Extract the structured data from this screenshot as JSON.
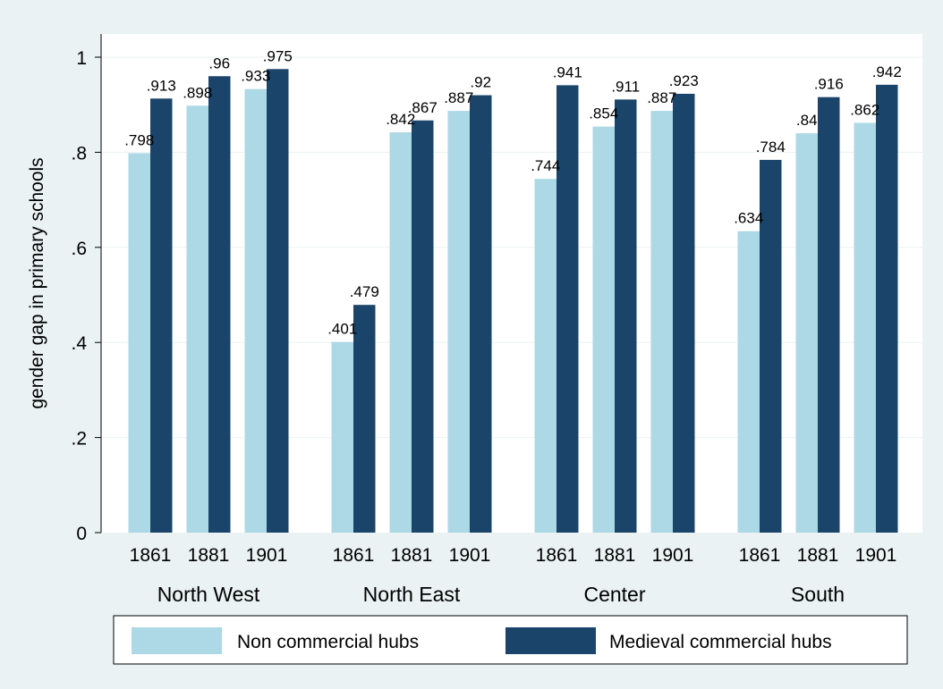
{
  "chart_data": {
    "type": "bar",
    "title": "",
    "xlabel": "",
    "ylabel": "gender gap in primary schools",
    "ylim": [
      0,
      1
    ],
    "yticks": [
      0,
      0.2,
      0.4,
      0.6,
      0.8,
      1
    ],
    "ytick_labels": [
      "0",
      ".2",
      ".4",
      ".6",
      ".8",
      "1"
    ],
    "grid": true,
    "legend_position": "bottom",
    "groups": [
      "North West",
      "North East",
      "Center",
      "South"
    ],
    "categories": [
      "1861",
      "1881",
      "1901"
    ],
    "series": [
      {
        "name": "Non commercial hubs",
        "color": "#add8e6",
        "values": [
          [
            0.798,
            0.898,
            0.933
          ],
          [
            0.401,
            0.842,
            0.887
          ],
          [
            0.744,
            0.854,
            0.887
          ],
          [
            0.634,
            0.84,
            0.862
          ]
        ],
        "labels": [
          [
            ".798",
            ".898",
            ".933"
          ],
          [
            ".401",
            ".842",
            ".887"
          ],
          [
            ".744",
            ".854",
            ".887"
          ],
          [
            ".634",
            ".84",
            ".862"
          ]
        ]
      },
      {
        "name": "Medieval commercial hubs",
        "color": "#1a4469",
        "values": [
          [
            0.913,
            0.96,
            0.975
          ],
          [
            0.479,
            0.867,
            0.92
          ],
          [
            0.941,
            0.911,
            0.923
          ],
          [
            0.784,
            0.916,
            0.942
          ]
        ],
        "labels": [
          [
            ".913",
            ".96",
            ".975"
          ],
          [
            ".479",
            ".867",
            ".92"
          ],
          [
            ".941",
            ".911",
            ".923"
          ],
          [
            ".784",
            ".916",
            ".942"
          ]
        ]
      }
    ]
  }
}
